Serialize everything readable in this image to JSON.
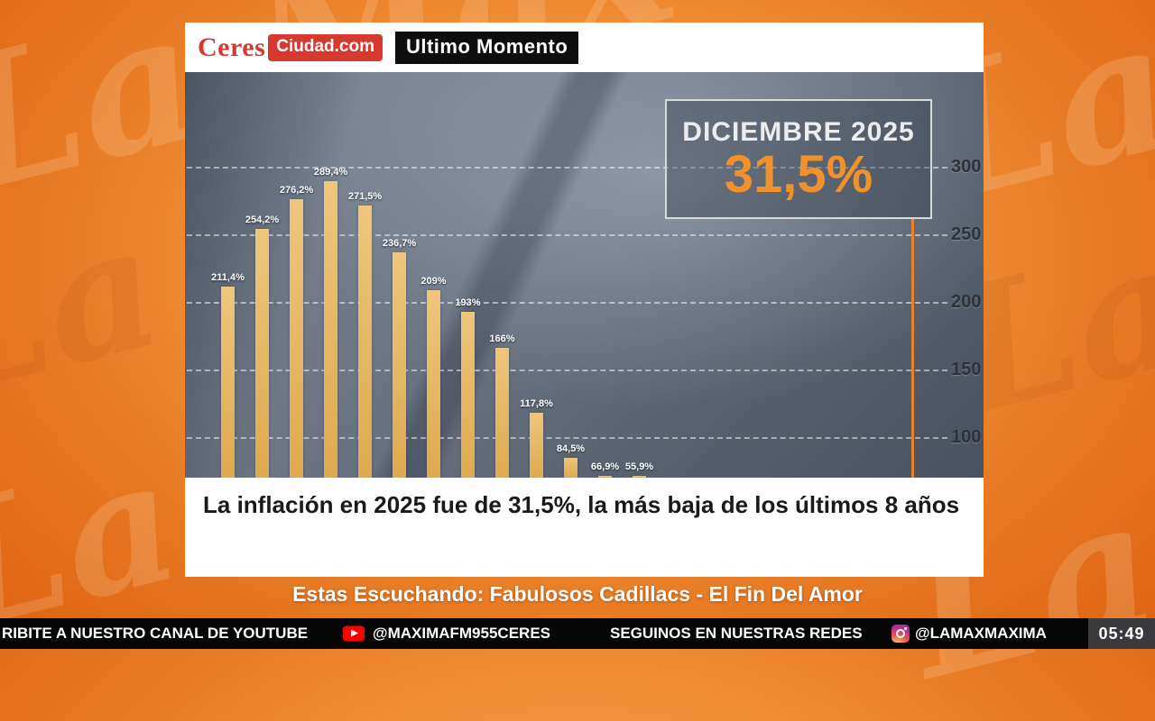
{
  "watermark": {
    "text": "La Max"
  },
  "header": {
    "brand_primary": "Ceres",
    "brand_secondary": "Ciudad.com",
    "badge": "Ultimo Momento"
  },
  "chart_data": {
    "type": "bar",
    "bars": [
      {
        "label": "211,4%",
        "value": 211.4
      },
      {
        "label": "254,2%",
        "value": 254.2
      },
      {
        "label": "276,2%",
        "value": 276.2
      },
      {
        "label": "289,4%",
        "value": 289.4
      },
      {
        "label": "271,5%",
        "value": 271.5
      },
      {
        "label": "236,7%",
        "value": 236.7
      },
      {
        "label": "209%",
        "value": 209
      },
      {
        "label": "193%",
        "value": 193
      },
      {
        "label": "166%",
        "value": 166
      },
      {
        "label": "117,8%",
        "value": 117.8
      },
      {
        "label": "84,5%",
        "value": 84.5
      },
      {
        "label": "66,9%",
        "value": 66.9
      },
      {
        "label": "55,9%",
        "value": 55.9
      }
    ],
    "y_ticks": [
      300,
      250,
      200,
      150,
      100
    ],
    "y_axis_side": "right",
    "grid": "dashed-horizontal",
    "ylim_visible": [
      70,
      310
    ],
    "bar_color": "#DFA94F",
    "bar_color_top": "#EEC67C",
    "highlight_line_color": "#E8832C",
    "annotation": {
      "label": "DICIEMBRE 2025",
      "value": "31,5%"
    }
  },
  "caption": "La inflación en 2025 fue de 31,5%, la más baja de los últimos 8 años",
  "now_playing": "Estas Escuchando: Fabulosos Cadillacs - El Fin Del Amor",
  "ticker": {
    "youtube_text": "RIBITE A NUESTRO CANAL DE YOUTUBE",
    "youtube_handle": "@MAXIMAFM955CERES",
    "social_text": "SEGUINOS EN NUESTRAS REDES",
    "instagram_handle": "@LAMAXMAXIMA",
    "clock": "05:49"
  }
}
